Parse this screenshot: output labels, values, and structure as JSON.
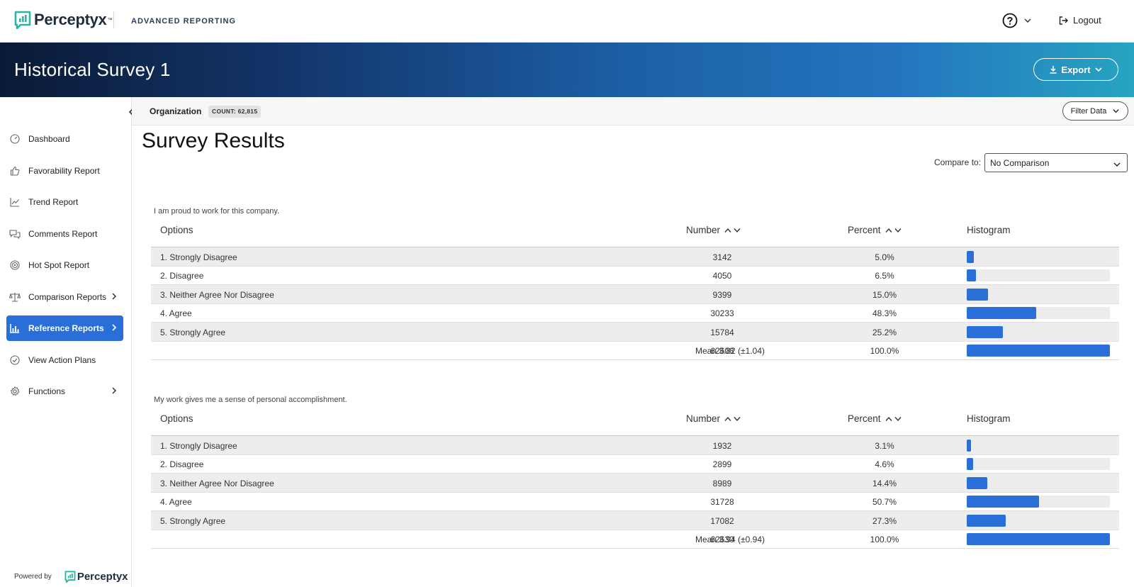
{
  "app": {
    "brand": "Perceptyx",
    "brand_tm": "™",
    "section": "ADVANCED REPORTING",
    "logout_label": "Logout"
  },
  "banner": {
    "title": "Historical Survey 1",
    "export_label": "Export"
  },
  "org": {
    "label": "Organization",
    "count": "COUNT: 62,815",
    "filter_label": "Filter Data"
  },
  "sidebar": {
    "items": [
      {
        "label": "Dashboard",
        "icon": "dashboard-icon"
      },
      {
        "label": "Favorability Report",
        "icon": "thumbs-up-icon"
      },
      {
        "label": "Trend Report",
        "icon": "trend-chart-icon"
      },
      {
        "label": "Comments Report",
        "icon": "comments-icon"
      },
      {
        "label": "Hot Spot Report",
        "icon": "target-icon"
      },
      {
        "label": "Comparison Reports",
        "icon": "scale-icon"
      },
      {
        "label": "Reference Reports",
        "icon": "bar-chart-icon"
      },
      {
        "label": "View Action Plans",
        "icon": "check-circle-icon"
      },
      {
        "label": "Functions",
        "icon": "gear-icon"
      }
    ],
    "powered_by": "Powered by",
    "powered_brand": "Perceptyx"
  },
  "main": {
    "title": "Survey Results",
    "compare_label": "Compare to:",
    "compare_value": "No Comparison",
    "columns": {
      "options": "Options",
      "number": "Number",
      "percent": "Percent",
      "histogram": "Histogram"
    },
    "colors": {
      "accent": "#2a6ed8",
      "stripe": "#ededed"
    },
    "questions": [
      {
        "text": "I am proud to work for this company.",
        "rows": [
          {
            "option": "1. Strongly Disagree",
            "number": "3142",
            "percent": "5.0%",
            "share": 0.05
          },
          {
            "option": "2. Disagree",
            "number": "4050",
            "percent": "6.5%",
            "share": 0.065
          },
          {
            "option": "3. Neither Agree Nor Disagree",
            "number": "9399",
            "percent": "15.0%",
            "share": 0.15
          },
          {
            "option": "4. Agree",
            "number": "30233",
            "percent": "48.3%",
            "share": 0.483
          },
          {
            "option": "5. Strongly Agree",
            "number": "15784",
            "percent": "25.2%",
            "share": 0.252
          }
        ],
        "total": {
          "mean": "Mean 3.82 (±1.04)",
          "number": "62608",
          "percent": "100.0%",
          "share": 1.0
        }
      },
      {
        "text": "My work gives me a sense of personal accomplishment.",
        "rows": [
          {
            "option": "1. Strongly Disagree",
            "number": "1932",
            "percent": "3.1%",
            "share": 0.031
          },
          {
            "option": "2. Disagree",
            "number": "2899",
            "percent": "4.6%",
            "share": 0.046
          },
          {
            "option": "3. Neither Agree Nor Disagree",
            "number": "8989",
            "percent": "14.4%",
            "share": 0.144
          },
          {
            "option": "4. Agree",
            "number": "31728",
            "percent": "50.7%",
            "share": 0.507
          },
          {
            "option": "5. Strongly Agree",
            "number": "17082",
            "percent": "27.3%",
            "share": 0.273
          }
        ],
        "total": {
          "mean": "Mean 3.94 (±0.94)",
          "number": "62630",
          "percent": "100.0%",
          "share": 1.0
        }
      }
    ]
  }
}
